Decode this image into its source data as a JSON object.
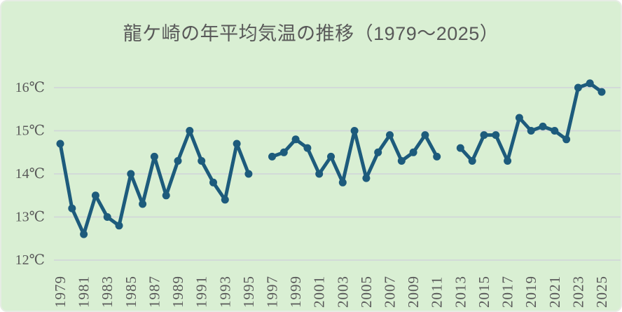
{
  "colors": {
    "background": "#d9efd3",
    "series_line": "#1d5b7c",
    "gridline": "#d0d7d8",
    "text": "#595959"
  },
  "chart_data": {
    "type": "line",
    "title": "龍ケ崎の年平均気温の推移（1979～2025）",
    "xlabel": "",
    "ylabel": "",
    "x": [
      1979,
      1980,
      1981,
      1982,
      1983,
      1984,
      1985,
      1986,
      1987,
      1988,
      1989,
      1990,
      1991,
      1992,
      1993,
      1994,
      1995,
      1996,
      1997,
      1998,
      1999,
      2000,
      2001,
      2002,
      2003,
      2004,
      2005,
      2006,
      2007,
      2008,
      2009,
      2010,
      2011,
      2012,
      2013,
      2014,
      2015,
      2016,
      2017,
      2018,
      2019,
      2020,
      2021,
      2022,
      2023,
      2024,
      2025
    ],
    "values": [
      14.7,
      13.2,
      12.6,
      13.5,
      13.0,
      12.8,
      14.0,
      13.3,
      14.4,
      13.5,
      14.3,
      15.0,
      14.3,
      13.8,
      13.4,
      14.7,
      14.0,
      null,
      14.4,
      14.5,
      14.8,
      14.6,
      14.0,
      14.4,
      13.8,
      15.0,
      13.9,
      14.5,
      14.9,
      14.3,
      14.5,
      14.9,
      14.4,
      null,
      14.6,
      14.3,
      14.9,
      14.9,
      14.3,
      15.3,
      15.0,
      15.1,
      15.0,
      14.8,
      16.0,
      16.1,
      15.9
    ],
    "xticks": [
      1979,
      1981,
      1983,
      1985,
      1987,
      1989,
      1991,
      1993,
      1995,
      1997,
      1999,
      2001,
      2003,
      2005,
      2007,
      2009,
      2011,
      2013,
      2015,
      2017,
      2019,
      2021,
      2023,
      2025
    ],
    "yticks": [
      12,
      13,
      14,
      15,
      16
    ],
    "ytick_suffix": "℃",
    "ylim": [
      12,
      16.5
    ],
    "grid": true,
    "legend": "none"
  }
}
